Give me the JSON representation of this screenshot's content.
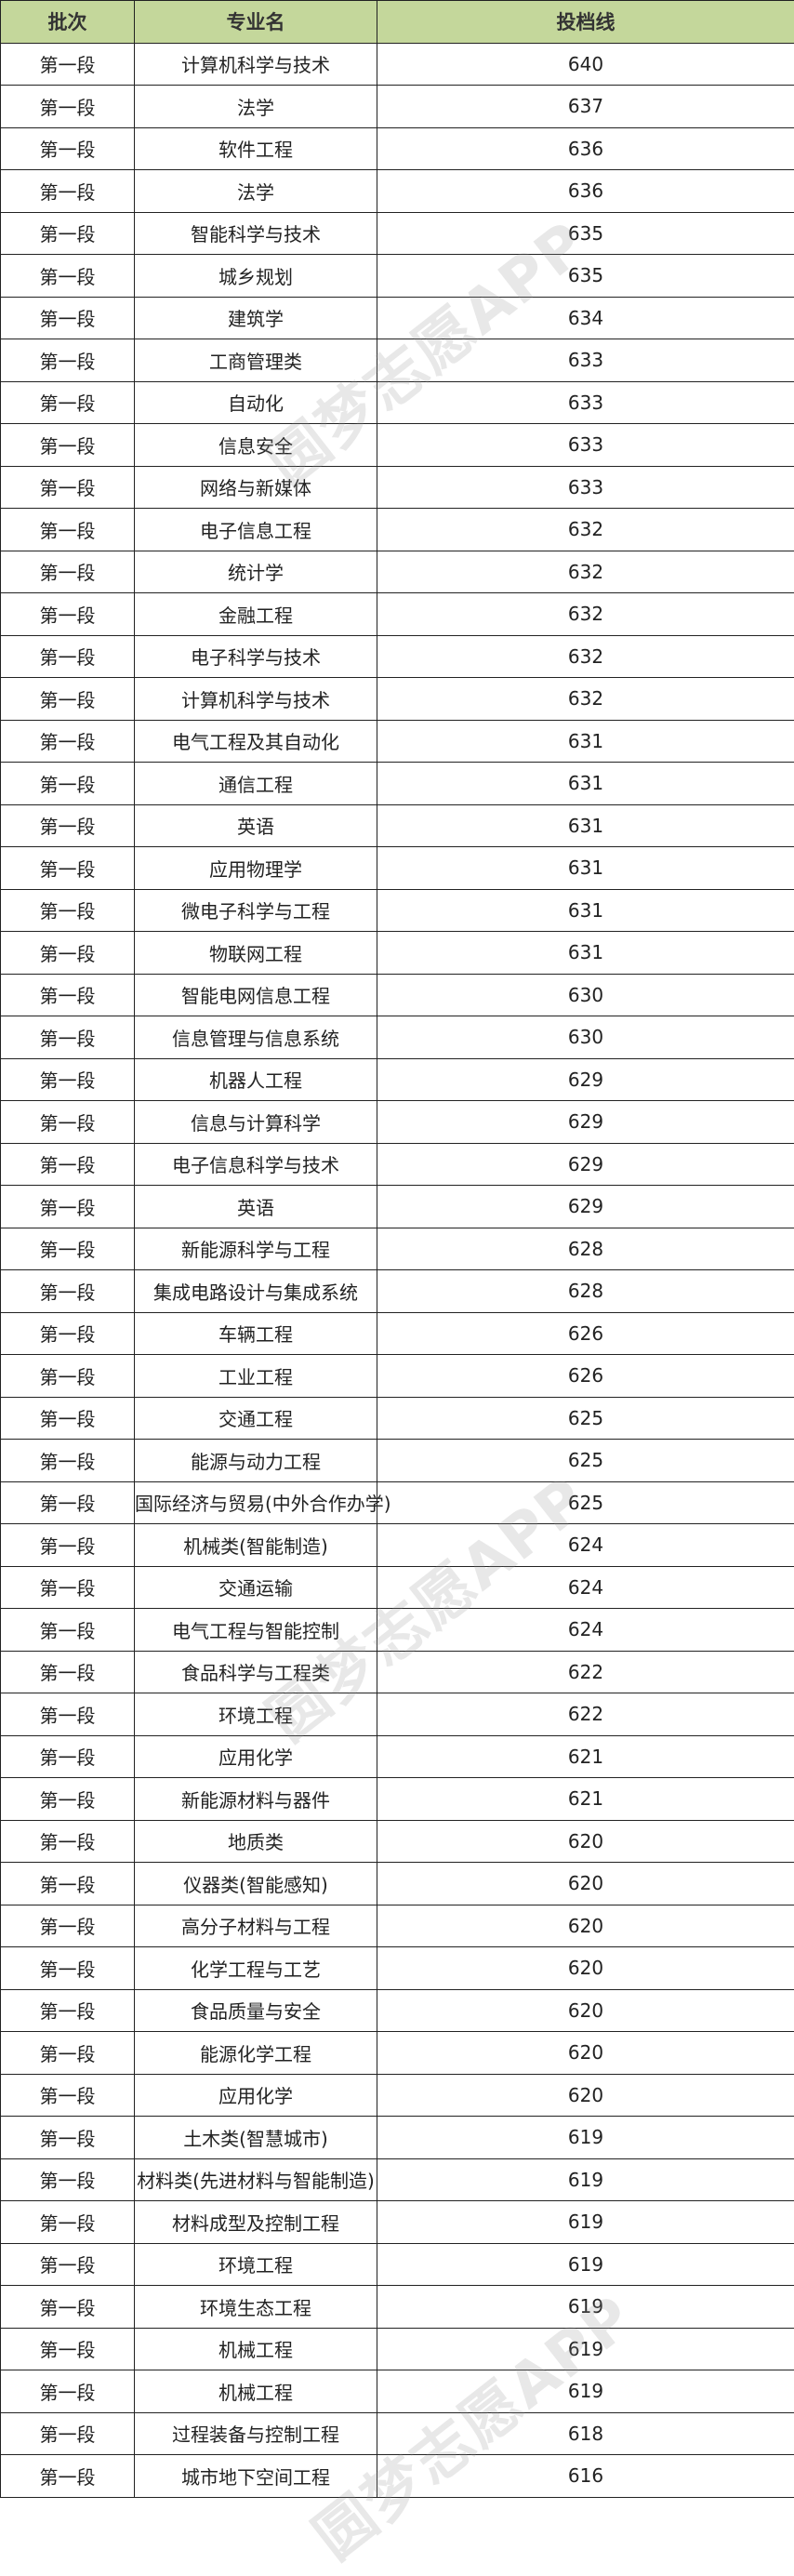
{
  "table": {
    "headers": [
      "批次",
      "专业名",
      "投档线"
    ],
    "rows": [
      [
        "第一段",
        "计算机科学与技术",
        "640"
      ],
      [
        "第一段",
        "法学",
        "637"
      ],
      [
        "第一段",
        "软件工程",
        "636"
      ],
      [
        "第一段",
        "法学",
        "636"
      ],
      [
        "第一段",
        "智能科学与技术",
        "635"
      ],
      [
        "第一段",
        "城乡规划",
        "635"
      ],
      [
        "第一段",
        "建筑学",
        "634"
      ],
      [
        "第一段",
        "工商管理类",
        "633"
      ],
      [
        "第一段",
        "自动化",
        "633"
      ],
      [
        "第一段",
        "信息安全",
        "633"
      ],
      [
        "第一段",
        "网络与新媒体",
        "633"
      ],
      [
        "第一段",
        "电子信息工程",
        "632"
      ],
      [
        "第一段",
        "统计学",
        "632"
      ],
      [
        "第一段",
        "金融工程",
        "632"
      ],
      [
        "第一段",
        "电子科学与技术",
        "632"
      ],
      [
        "第一段",
        "计算机科学与技术",
        "632"
      ],
      [
        "第一段",
        "电气工程及其自动化",
        "631"
      ],
      [
        "第一段",
        "通信工程",
        "631"
      ],
      [
        "第一段",
        "英语",
        "631"
      ],
      [
        "第一段",
        "应用物理学",
        "631"
      ],
      [
        "第一段",
        "微电子科学与工程",
        "631"
      ],
      [
        "第一段",
        "物联网工程",
        "631"
      ],
      [
        "第一段",
        "智能电网信息工程",
        "630"
      ],
      [
        "第一段",
        "信息管理与信息系统",
        "630"
      ],
      [
        "第一段",
        "机器人工程",
        "629"
      ],
      [
        "第一段",
        "信息与计算科学",
        "629"
      ],
      [
        "第一段",
        "电子信息科学与技术",
        "629"
      ],
      [
        "第一段",
        "英语",
        "629"
      ],
      [
        "第一段",
        "新能源科学与工程",
        "628"
      ],
      [
        "第一段",
        "集成电路设计与集成系统",
        "628"
      ],
      [
        "第一段",
        "车辆工程",
        "626"
      ],
      [
        "第一段",
        "工业工程",
        "626"
      ],
      [
        "第一段",
        "交通工程",
        "625"
      ],
      [
        "第一段",
        "能源与动力工程",
        "625"
      ],
      [
        "第一段",
        "国际经济与贸易(中外合作办学)",
        "625"
      ],
      [
        "第一段",
        "机械类(智能制造)",
        "624"
      ],
      [
        "第一段",
        "交通运输",
        "624"
      ],
      [
        "第一段",
        "电气工程与智能控制",
        "624"
      ],
      [
        "第一段",
        "食品科学与工程类",
        "622"
      ],
      [
        "第一段",
        "环境工程",
        "622"
      ],
      [
        "第一段",
        "应用化学",
        "621"
      ],
      [
        "第一段",
        "新能源材料与器件",
        "621"
      ],
      [
        "第一段",
        "地质类",
        "620"
      ],
      [
        "第一段",
        "仪器类(智能感知)",
        "620"
      ],
      [
        "第一段",
        "高分子材料与工程",
        "620"
      ],
      [
        "第一段",
        "化学工程与工艺",
        "620"
      ],
      [
        "第一段",
        "食品质量与安全",
        "620"
      ],
      [
        "第一段",
        "能源化学工程",
        "620"
      ],
      [
        "第一段",
        "应用化学",
        "620"
      ],
      [
        "第一段",
        "土木类(智慧城市)",
        "619"
      ],
      [
        "第一段",
        "材料类(先进材料与智能制造)",
        "619"
      ],
      [
        "第一段",
        "材料成型及控制工程",
        "619"
      ],
      [
        "第一段",
        "环境工程",
        "619"
      ],
      [
        "第一段",
        "环境生态工程",
        "619"
      ],
      [
        "第一段",
        "机械工程",
        "619"
      ],
      [
        "第一段",
        "机械工程",
        "619"
      ],
      [
        "第一段",
        "过程装备与控制工程",
        "618"
      ],
      [
        "第一段",
        "城市地下空间工程",
        "616"
      ]
    ]
  },
  "watermark": "圆梦志愿APP",
  "colors": {
    "header_bg": "#c4d79b",
    "border": "#222222"
  }
}
